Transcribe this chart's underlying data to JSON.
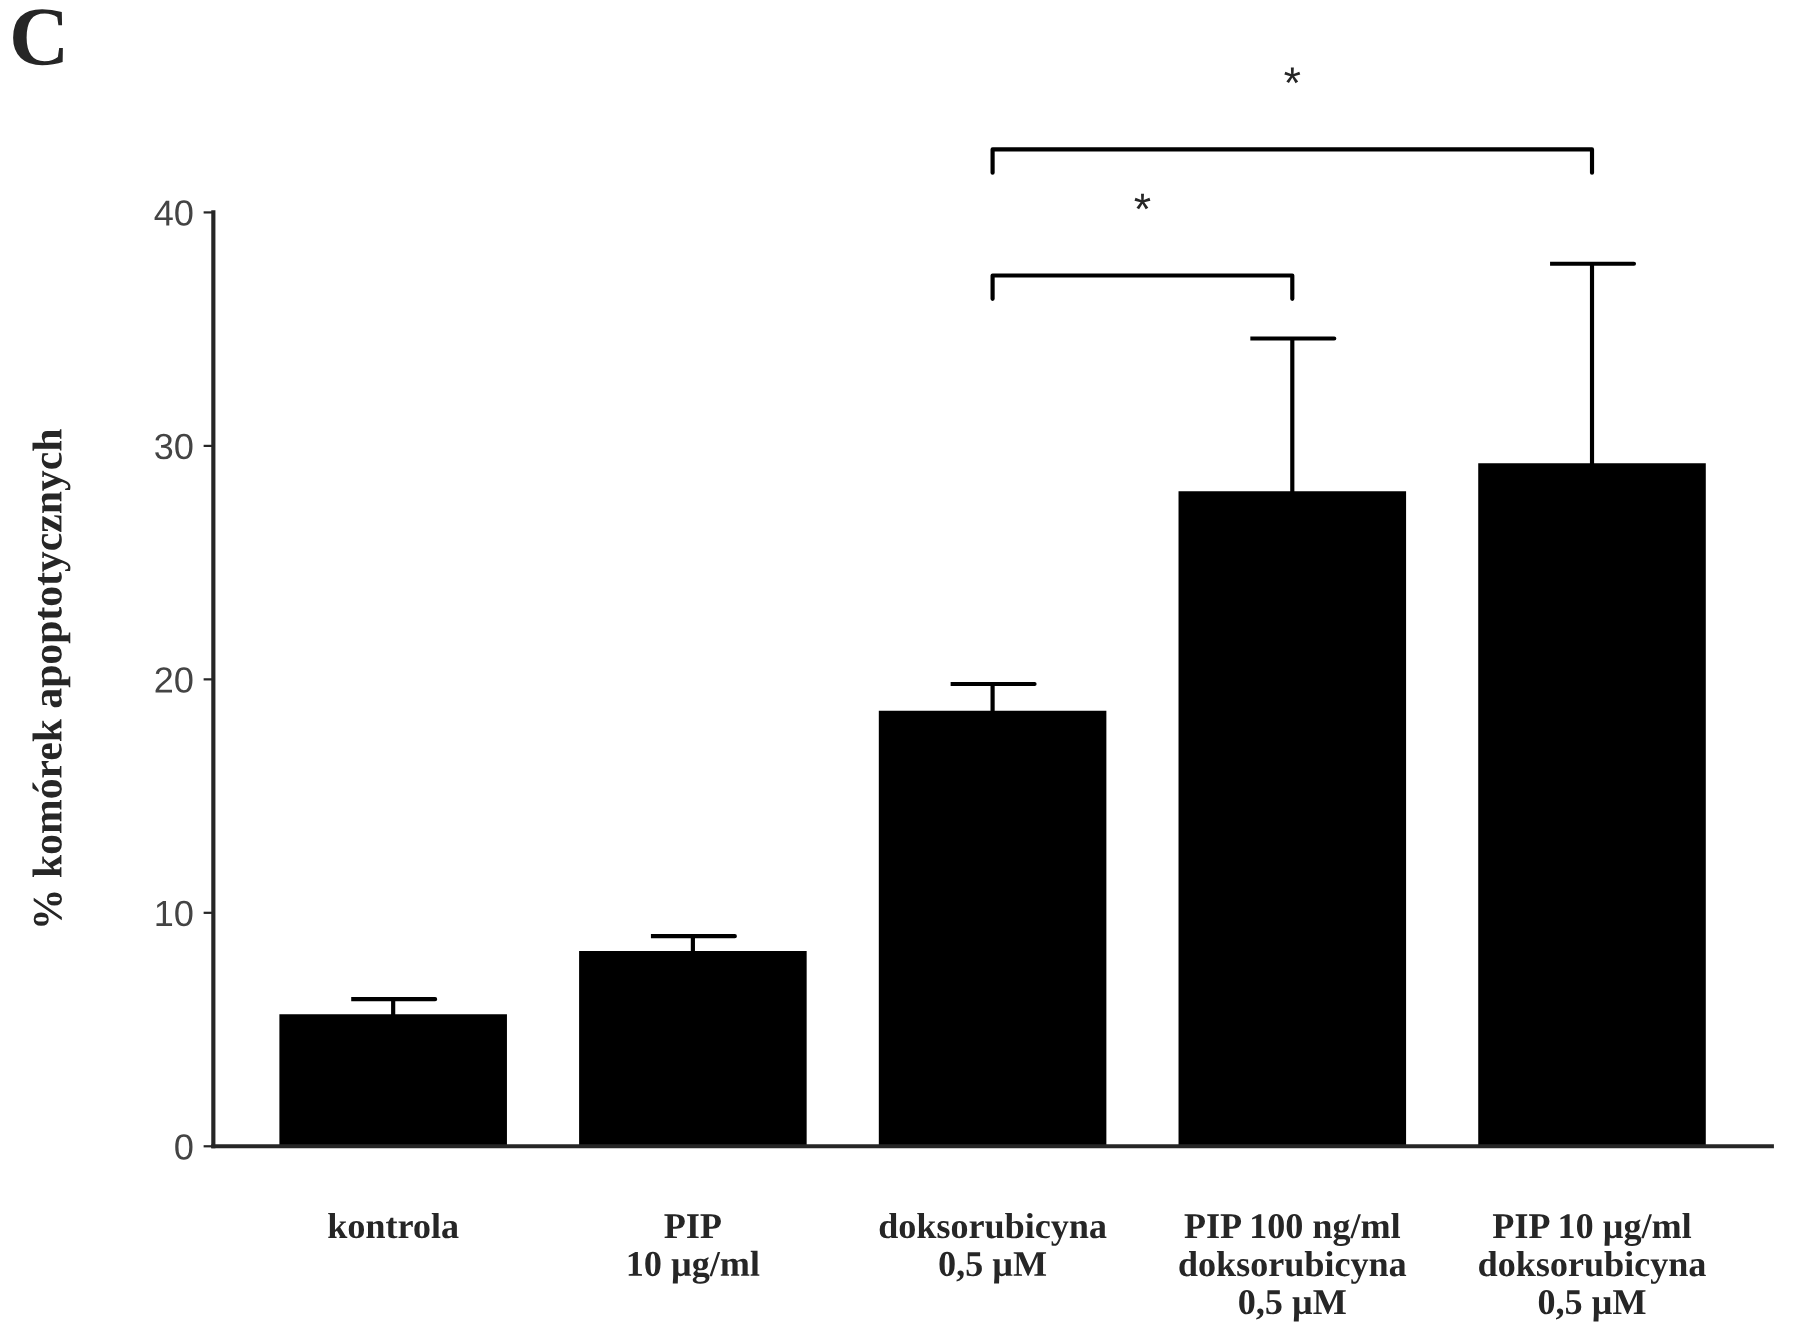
{
  "chart_data": {
    "type": "bar",
    "ylabel": "% komórek apoptotycznych",
    "categories": [
      "kontrola",
      "PIP\n10 µg/ml",
      "doksorubicyna\n0,5 µM",
      "PIP 100 ng/ml\ndoksorubicyna\n0,5 µM",
      "PIP 10 µg/ml\ndoksorubicyna\n0,5 µM"
    ],
    "values": [
      5.6,
      8.3,
      18.6,
      28.0,
      29.2
    ],
    "errors": [
      [
        5.6,
        6.3
      ],
      [
        8.3,
        9.0
      ],
      [
        18.6,
        19.8
      ],
      [
        28.0,
        34.6
      ],
      [
        29.2,
        37.8
      ]
    ],
    "color": "#000000",
    "ylim": [
      0,
      40
    ],
    "yticks": [
      0,
      10,
      20,
      30,
      40
    ],
    "annotations": [
      "C",
      "*",
      "*"
    ]
  }
}
